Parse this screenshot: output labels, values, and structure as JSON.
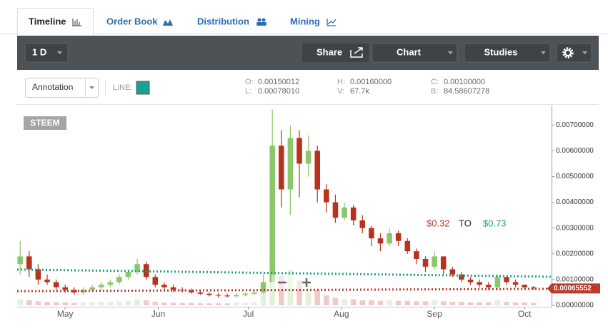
{
  "tabs": [
    "Timeline",
    "Order Book",
    "Distribution",
    "Mining"
  ],
  "toolbar": {
    "interval": "1 D",
    "share": "Share",
    "chart": "Chart",
    "studies": "Studies"
  },
  "info": {
    "annotation": "Annotation",
    "line_label": "LINE:",
    "line_color": "#1aa08f",
    "stats": [
      {
        "label": "O:",
        "value": "0.00150012"
      },
      {
        "label": "L:",
        "value": "0.00078010"
      },
      {
        "label": "H:",
        "value": "0.00160000"
      },
      {
        "label": "V:",
        "value": "67.7k"
      },
      {
        "label": "C:",
        "value": "0.00100000"
      },
      {
        "label": "B:",
        "value": "84.58607278"
      }
    ]
  },
  "chart_data": {
    "type": "candlestick",
    "symbol": "STEEM",
    "x": [
      -15,
      -12,
      -9,
      -6,
      -3,
      0,
      3,
      6,
      9,
      12,
      15,
      18,
      21,
      24,
      27,
      30,
      33,
      36,
      39,
      42,
      45,
      48,
      51,
      54,
      57,
      60,
      63,
      66,
      69,
      72,
      75,
      78,
      81,
      84,
      87,
      90,
      93,
      96,
      99,
      102,
      105,
      108,
      111,
      114,
      117,
      120,
      123,
      126,
      129,
      132,
      135,
      138,
      141,
      144,
      147,
      150,
      153,
      156
    ],
    "open": [
      0.0016,
      0.0019,
      0.0014,
      0.001,
      0.0009,
      0.0007,
      0.0006,
      0.0005,
      0.0006,
      0.0007,
      0.0008,
      0.0009,
      0.0011,
      0.0013,
      0.0016,
      0.0011,
      0.0008,
      0.0007,
      0.0006,
      0.00058,
      0.0005,
      0.00045,
      0.0004,
      0.00038,
      0.00035,
      0.0004,
      0.00045,
      0.0005,
      0.0009,
      0.0062,
      0.0045,
      0.0065,
      0.0055,
      0.006,
      0.0045,
      0.004,
      0.0034,
      0.0038,
      0.0033,
      0.003,
      0.0026,
      0.0024,
      0.0028,
      0.0025,
      0.0021,
      0.0018,
      0.0015,
      0.0019,
      0.0014,
      0.0012,
      0.001,
      0.0009,
      0.0008,
      0.0007,
      0.0011,
      0.0009,
      0.0008,
      0.0007
    ],
    "high": [
      0.0025,
      0.0021,
      0.0016,
      0.0012,
      0.001,
      0.0008,
      0.0007,
      0.0007,
      0.0008,
      0.0009,
      0.001,
      0.0012,
      0.0014,
      0.0018,
      0.0017,
      0.0012,
      0.0009,
      0.0008,
      0.0007,
      0.00065,
      0.0006,
      0.0005,
      0.00048,
      0.00045,
      0.00048,
      0.0005,
      0.0006,
      0.0012,
      0.0076,
      0.0068,
      0.007,
      0.0068,
      0.0066,
      0.0062,
      0.0047,
      0.0043,
      0.004,
      0.0039,
      0.0035,
      0.0031,
      0.0028,
      0.003,
      0.0029,
      0.0026,
      0.0022,
      0.0019,
      0.0021,
      0.0019,
      0.0015,
      0.0013,
      0.0011,
      0.001,
      0.0009,
      0.0012,
      0.0011,
      0.001,
      0.0008,
      0.00075
    ],
    "low": [
      0.0012,
      0.0011,
      0.0008,
      0.0008,
      0.0006,
      0.0005,
      0.0004,
      0.0004,
      0.0005,
      0.0006,
      0.0007,
      0.0008,
      0.001,
      0.0012,
      0.001,
      0.0007,
      0.0006,
      0.0005,
      0.0005,
      0.00045,
      0.0004,
      0.00035,
      0.0003,
      0.0003,
      0.0003,
      0.00035,
      0.0004,
      0.00045,
      0.0009,
      0.0038,
      0.0035,
      0.0042,
      0.005,
      0.004,
      0.0036,
      0.0032,
      0.0033,
      0.0031,
      0.0028,
      0.0023,
      0.0021,
      0.0023,
      0.0023,
      0.002,
      0.0016,
      0.0013,
      0.0014,
      0.0012,
      0.0011,
      0.0009,
      0.0008,
      0.0007,
      0.0006,
      0.0006,
      0.0008,
      0.0007,
      0.0006,
      0.0006
    ],
    "close": [
      0.0019,
      0.0014,
      0.001,
      0.0009,
      0.0007,
      0.0006,
      0.0005,
      0.0006,
      0.0007,
      0.0008,
      0.0009,
      0.0011,
      0.0013,
      0.0016,
      0.0011,
      0.0008,
      0.0007,
      0.0006,
      0.00058,
      0.0005,
      0.00045,
      0.0004,
      0.00038,
      0.00035,
      0.0004,
      0.00045,
      0.0005,
      0.0009,
      0.0062,
      0.0045,
      0.0065,
      0.0055,
      0.006,
      0.0045,
      0.004,
      0.0034,
      0.0038,
      0.0033,
      0.003,
      0.0026,
      0.0024,
      0.0028,
      0.0025,
      0.0021,
      0.0018,
      0.0015,
      0.0019,
      0.0014,
      0.0012,
      0.001,
      0.0009,
      0.0008,
      0.0007,
      0.0011,
      0.0009,
      0.0008,
      0.0007,
      0.00066
    ],
    "volume": [
      12,
      10,
      8,
      7,
      6,
      6,
      5,
      6,
      6,
      7,
      7,
      8,
      9,
      12,
      10,
      7,
      6,
      5,
      5,
      5,
      4,
      4,
      4,
      4,
      5,
      5,
      6,
      30,
      100,
      60,
      70,
      50,
      40,
      30,
      20,
      15,
      12,
      12,
      10,
      10,
      9,
      10,
      9,
      9,
      8,
      8,
      10,
      8,
      7,
      7,
      6,
      6,
      6,
      10,
      7,
      6,
      6,
      5
    ],
    "up_color": "#8cc76b",
    "down_color": "#b8331f",
    "xlim": [
      -16,
      162
    ],
    "xticks": [
      {
        "value": 0,
        "label": "May"
      },
      {
        "value": 31,
        "label": "Jun"
      },
      {
        "value": 61,
        "label": "Jul"
      },
      {
        "value": 92,
        "label": "Aug"
      },
      {
        "value": 123,
        "label": "Sep"
      },
      {
        "value": 153,
        "label": "Oct"
      }
    ],
    "ylim": [
      0,
      0.0077
    ],
    "yticks": [
      {
        "value": 0,
        "label": "0.00000000"
      },
      {
        "value": 0.001,
        "label": "0.00100000"
      },
      {
        "value": 0.002,
        "label": "0.00200000"
      },
      {
        "value": 0.003,
        "label": "0.00300000"
      },
      {
        "value": 0.004,
        "label": "0.00400000"
      },
      {
        "value": 0.005,
        "label": "0.00500000"
      },
      {
        "value": 0.006,
        "label": "0.00600000"
      },
      {
        "value": 0.007,
        "label": "0.00700000"
      }
    ],
    "grid": false,
    "lines": [
      {
        "color": "#1aa08f",
        "x": [
          -16,
          162
        ],
        "y": [
          0.00139,
          0.00111
        ]
      },
      {
        "color": "#c0392b",
        "x": [
          -16,
          162
        ],
        "y": [
          0.00055,
          0.00064
        ]
      }
    ],
    "annotations": [
      {
        "text": "$0.32",
        "color": "#c0392b"
      },
      {
        "text": "TO",
        "color": "#222222"
      },
      {
        "text": "$0.73",
        "color": "#1aa08f"
      }
    ],
    "last_price": {
      "value": 0.00065552,
      "label": "0.00065552",
      "color": "#c0392b"
    }
  }
}
